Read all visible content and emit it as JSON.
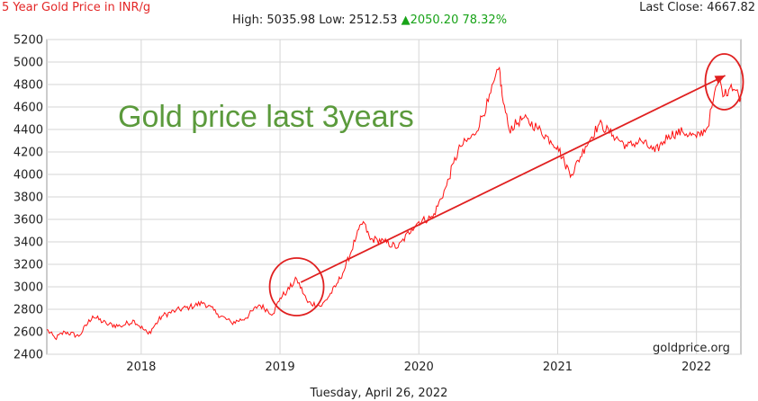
{
  "header": {
    "title": "5 Year Gold Price in INR/g",
    "last_close": "Last Close: 4667.82",
    "stats_prefix": "High: 5035.98 Low: 2512.53",
    "stats_change": "▲2050.20 78.32%"
  },
  "footer": {
    "date": "Tuesday, April 26, 2022"
  },
  "credit": "goldprice.org",
  "annotation": "Gold price last 3years",
  "colors": {
    "line": "#ff1010",
    "title": "#e32626",
    "annotation": "#5b9a3c",
    "grid": "#d6d6d6",
    "up": "#18a318"
  },
  "chart_data": {
    "type": "line",
    "title": "5 Year Gold Price in INR/g",
    "ylim": [
      2400,
      5200
    ],
    "xlim": [
      2017.32,
      2022.32
    ],
    "yticks": [
      "2400",
      "2600",
      "2800",
      "3000",
      "3200",
      "3400",
      "3600",
      "3800",
      "4000",
      "4200",
      "4400",
      "4600",
      "4800",
      "5000",
      "5200"
    ],
    "xticks": [
      "2018",
      "2019",
      "2020",
      "2021",
      "2022"
    ],
    "grid": true,
    "series": [
      {
        "x": [
          2017.32,
          2017.38,
          2017.45,
          2017.55,
          2017.65,
          2017.75,
          2017.85,
          2017.95,
          2018.05,
          2018.15,
          2018.25,
          2018.35,
          2018.45,
          2018.55,
          2018.65,
          2018.75,
          2018.85,
          2018.95,
          2019.0,
          2019.05,
          2019.12,
          2019.2,
          2019.3,
          2019.4,
          2019.47,
          2019.55,
          2019.6,
          2019.65,
          2019.7,
          2019.75,
          2019.85,
          2019.95,
          2020.0,
          2020.1,
          2020.2,
          2020.25,
          2020.3,
          2020.4,
          2020.5,
          2020.58,
          2020.6,
          2020.65,
          2020.75,
          2020.85,
          2020.95,
          2021.0,
          2021.05,
          2021.1,
          2021.2,
          2021.3,
          2021.4,
          2021.5,
          2021.6,
          2021.7,
          2021.8,
          2021.9,
          2022.0,
          2022.08,
          2022.12,
          2022.16,
          2022.2,
          2022.25,
          2022.32
        ],
        "values": [
          2620,
          2540,
          2600,
          2560,
          2740,
          2670,
          2650,
          2700,
          2580,
          2740,
          2790,
          2820,
          2860,
          2760,
          2680,
          2720,
          2840,
          2760,
          2900,
          2960,
          3070,
          2860,
          2830,
          3000,
          3170,
          3450,
          3580,
          3420,
          3420,
          3400,
          3350,
          3520,
          3580,
          3620,
          3900,
          4100,
          4250,
          4350,
          4650,
          4950,
          4700,
          4400,
          4500,
          4420,
          4300,
          4250,
          4100,
          4000,
          4250,
          4450,
          4350,
          4250,
          4300,
          4200,
          4350,
          4380,
          4330,
          4420,
          4650,
          4850,
          4700,
          4800,
          4680
        ]
      }
    ]
  }
}
